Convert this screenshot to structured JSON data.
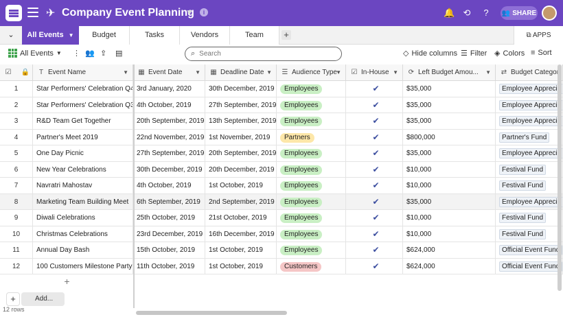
{
  "header": {
    "title": "Company Event Planning",
    "share_label": "SHARE"
  },
  "tabs": [
    {
      "label": "All Events",
      "active": true
    },
    {
      "label": "Budget"
    },
    {
      "label": "Tasks"
    },
    {
      "label": "Vendors"
    },
    {
      "label": "Team"
    }
  ],
  "apps_label": "APPS",
  "toolbar": {
    "view_name": "All Events",
    "search_placeholder": "Search",
    "hide_columns": "Hide columns",
    "filter": "Filter",
    "colors": "Colors",
    "sort": "Sort"
  },
  "columns": [
    {
      "label": "Event Name",
      "icon": "text-icon"
    },
    {
      "label": "Event Date",
      "icon": "calendar-icon"
    },
    {
      "label": "Deadline Date",
      "icon": "calendar-icon"
    },
    {
      "label": "Audience Type",
      "icon": "list-icon"
    },
    {
      "label": "In-House",
      "icon": "checkbox-icon"
    },
    {
      "label": "Left Budget Amou...",
      "icon": "formula-icon"
    },
    {
      "label": "Budget Categor",
      "icon": "link-icon"
    }
  ],
  "rows": [
    {
      "num": "1",
      "name": "Star Performers' Celebration Q4",
      "event_date": "3rd January, 2020",
      "deadline": "30th December, 2019",
      "audience": "Employees",
      "inhouse": true,
      "budget": "$35,000",
      "category": "Employee Apprecia"
    },
    {
      "num": "2",
      "name": "Star Performers' Celebration Q3",
      "event_date": "4th October, 2019",
      "deadline": "27th September, 2019",
      "audience": "Employees",
      "inhouse": true,
      "budget": "$35,000",
      "category": "Employee Apprecia"
    },
    {
      "num": "3",
      "name": "R&D Team Get Together",
      "event_date": "20th September, 2019",
      "deadline": "13th September, 2019",
      "audience": "Employees",
      "inhouse": true,
      "budget": "$35,000",
      "category": "Employee Apprecia"
    },
    {
      "num": "4",
      "name": "Partner's Meet 2019",
      "event_date": "22nd November, 2019",
      "deadline": "1st November, 2019",
      "audience": "Partners",
      "inhouse": true,
      "budget": "$800,000",
      "category": "Partner's Fund"
    },
    {
      "num": "5",
      "name": "One Day Picnic",
      "event_date": "27th September, 2019",
      "deadline": "20th September, 2019",
      "audience": "Employees",
      "inhouse": true,
      "budget": "$35,000",
      "category": "Employee Apprecia"
    },
    {
      "num": "6",
      "name": "New Year Celebrations",
      "event_date": "30th December, 2019",
      "deadline": "20th December, 2019",
      "audience": "Employees",
      "inhouse": true,
      "budget": "$10,000",
      "category": "Festival Fund"
    },
    {
      "num": "7",
      "name": "Navratri Mahostav",
      "event_date": "4th October, 2019",
      "deadline": "1st October, 2019",
      "audience": "Employees",
      "inhouse": true,
      "budget": "$10,000",
      "category": "Festival Fund"
    },
    {
      "num": "8",
      "name": "Marketing Team Building Meet",
      "event_date": "6th September, 2019",
      "deadline": "2nd September, 2019",
      "audience": "Employees",
      "inhouse": true,
      "budget": "$35,000",
      "category": "Employee Apprecia"
    },
    {
      "num": "9",
      "name": "Diwali Celebrations",
      "event_date": "25th October, 2019",
      "deadline": "21st October, 2019",
      "audience": "Employees",
      "inhouse": true,
      "budget": "$10,000",
      "category": "Festival Fund"
    },
    {
      "num": "10",
      "name": "Christmas Celebrations",
      "event_date": "23rd December, 2019",
      "deadline": "16th December, 2019",
      "audience": "Employees",
      "inhouse": true,
      "budget": "$10,000",
      "category": "Festival Fund"
    },
    {
      "num": "11",
      "name": "Annual Day Bash",
      "event_date": "15th October, 2019",
      "deadline": "1st October, 2019",
      "audience": "Employees",
      "inhouse": true,
      "budget": "$624,000",
      "category": "Official Event Fund"
    },
    {
      "num": "12",
      "name": "100 Customers Milestone Party",
      "event_date": "11th October, 2019",
      "deadline": "1st October, 2019",
      "audience": "Customers",
      "inhouse": true,
      "budget": "$624,000",
      "category": "Official Event Fund"
    }
  ],
  "audience_colors": {
    "Employees": "#c9efc4",
    "Partners": "#fde7a9",
    "Customers": "#f5c6c6"
  },
  "footer": {
    "add_label": "Add...",
    "rows_count": "12 rows"
  },
  "colors": {
    "brand": "#6b46c1",
    "check": "#3d4fa0"
  }
}
